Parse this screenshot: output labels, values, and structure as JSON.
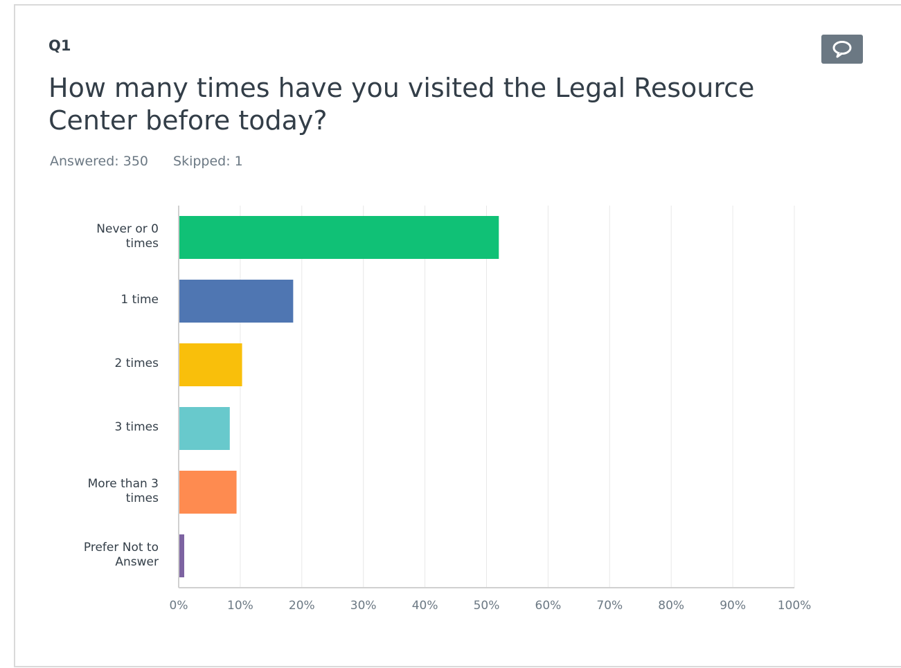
{
  "question": {
    "number": "Q1",
    "title": "How many times have you visited the Legal Resource Center before today?",
    "answered": "Answered: 350",
    "skipped": "Skipped: 1"
  },
  "icons": {
    "comment": "comment-bubble-icon"
  },
  "colors": {
    "title": "#333e48",
    "meta": "#6b7883",
    "button": "#6b7883",
    "grid": "#e8e8e8"
  },
  "chart_data": {
    "type": "bar",
    "orientation": "horizontal",
    "categories": [
      [
        "Never or 0",
        "times"
      ],
      [
        "1 time"
      ],
      [
        "2 times"
      ],
      [
        "3 times"
      ],
      [
        "More than 3",
        "times"
      ],
      [
        "Prefer Not to",
        "Answer"
      ]
    ],
    "values": [
      52,
      18.6,
      10.3,
      8.3,
      9.4,
      0.9
    ],
    "colors": [
      "#10c176",
      "#4f76b2",
      "#f9bf0b",
      "#68c9cc",
      "#fe8b50",
      "#7d63a1"
    ],
    "xlim": [
      0,
      100
    ],
    "x_ticks": [
      0,
      10,
      20,
      30,
      40,
      50,
      60,
      70,
      80,
      90,
      100
    ],
    "x_tick_labels": [
      "0%",
      "10%",
      "20%",
      "30%",
      "40%",
      "50%",
      "60%",
      "70%",
      "80%",
      "90%",
      "100%"
    ],
    "grid": true,
    "title": "",
    "xlabel": "",
    "ylabel": ""
  }
}
